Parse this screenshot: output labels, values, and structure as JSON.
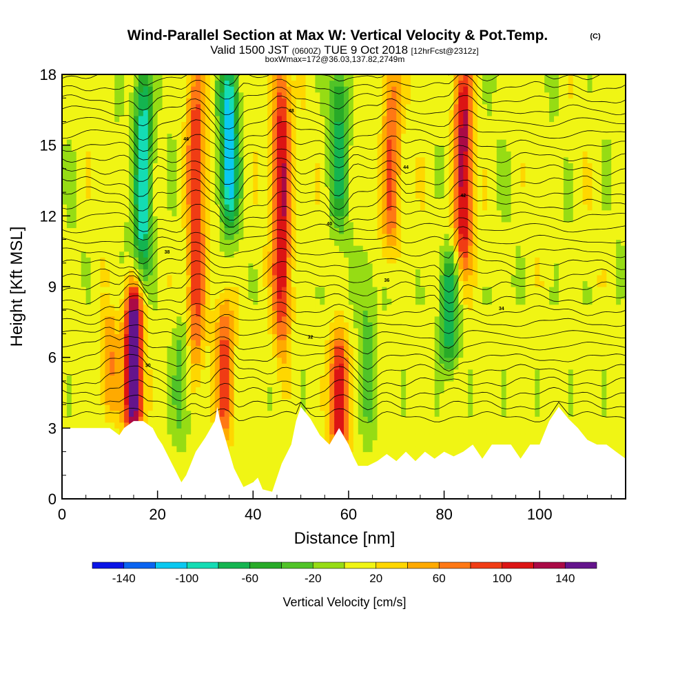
{
  "chart_data": {
    "type": "heatmap",
    "title": "Wind-Parallel Section at Max W: Vertical Velocity & Pot.Temp.",
    "title_suffix": "(C)",
    "subtitle_main": "Valid 1500 JST",
    "subtitle_utc": "(0600Z)",
    "subtitle_date": "TUE 9 Oct 2018",
    "subtitle_fcst": "[12hrFcst@2312z]",
    "subtitle2": "boxWmax=172@36.03,137.82,2749m",
    "xlabel": "Distance [nm]",
    "ylabel": "Height [Kft MSL]",
    "xlim": [
      0,
      118
    ],
    "ylim": [
      0,
      18
    ],
    "xticks": [
      "0",
      "20",
      "40",
      "60",
      "80",
      "100"
    ],
    "xtick_values": [
      0,
      20,
      40,
      60,
      80,
      100
    ],
    "yticks": [
      "0",
      "3",
      "6",
      "9",
      "12",
      "15",
      "18"
    ],
    "ytick_values": [
      0,
      3,
      6,
      9,
      12,
      15,
      18
    ],
    "colorbar": {
      "label": "Vertical Velocity [cm/s]",
      "ticks": [
        "-140",
        "-100",
        "-60",
        "-20",
        "20",
        "60",
        "100",
        "140"
      ],
      "tick_values": [
        -140,
        -100,
        -60,
        -20,
        20,
        60,
        100,
        140
      ],
      "boundaries": [
        -160,
        -140,
        -120,
        -100,
        -80,
        -60,
        -40,
        -20,
        0,
        20,
        40,
        60,
        80,
        100,
        120,
        140,
        160
      ],
      "colors": [
        "#0a14e6",
        "#0a64f0",
        "#0ac8f0",
        "#14dcb4",
        "#14b450",
        "#28aa28",
        "#50c328",
        "#96dc14",
        "#f0f514",
        "#ffd700",
        "#ffaa00",
        "#ff7814",
        "#f03c14",
        "#dc1414",
        "#aa0a46",
        "#64148c"
      ]
    },
    "updraft_columns": [
      {
        "x": 15,
        "peak_w": 172,
        "base": 3,
        "top": 8.5
      },
      {
        "x": 28,
        "peak_w": 90,
        "base": 6,
        "top": 18
      },
      {
        "x": 34,
        "peak_w": 80,
        "base": 3,
        "top": 8
      },
      {
        "x": 46,
        "peak_w": 120,
        "base": 7,
        "top": 18
      },
      {
        "x": 58,
        "peak_w": 110,
        "base": 2,
        "top": 6.5
      },
      {
        "x": 69,
        "peak_w": 80,
        "base": 11,
        "top": 18
      },
      {
        "x": 84,
        "peak_w": 120,
        "base": 10,
        "top": 18
      },
      {
        "x": 10,
        "peak_w": 55,
        "base": 4,
        "top": 7.5
      }
    ],
    "downdraft_columns": [
      {
        "x": 17,
        "peak_w": -110,
        "base": 10,
        "top": 18
      },
      {
        "x": 35,
        "peak_w": -120,
        "base": 12,
        "top": 18
      },
      {
        "x": 58,
        "peak_w": -70,
        "base": 12,
        "top": 18
      },
      {
        "x": 81,
        "peak_w": -80,
        "base": 6,
        "top": 10
      },
      {
        "x": 25,
        "peak_w": -40,
        "base": 3,
        "top": 7
      },
      {
        "x": 64,
        "peak_w": -35,
        "base": 3,
        "top": 10
      }
    ],
    "isentrope_labels": [
      "30",
      "32",
      "34",
      "36",
      "38",
      "40",
      "42",
      "44",
      "46",
      "48"
    ],
    "terrain": {
      "x": [
        0,
        10,
        12,
        13,
        15,
        17,
        19,
        20,
        21,
        22,
        23,
        24,
        25,
        26,
        27,
        28,
        30,
        32,
        32.5,
        33,
        34,
        35,
        36,
        37,
        38,
        40,
        41,
        42,
        44,
        46,
        48,
        49,
        50,
        52,
        54,
        56,
        58,
        60,
        61,
        62,
        64,
        66,
        68,
        70,
        72,
        74,
        76,
        78,
        80,
        82,
        84,
        86,
        88,
        90,
        92,
        94,
        96,
        98,
        100,
        102,
        104,
        106,
        108,
        110,
        112,
        114,
        116,
        118
      ],
      "y": [
        3,
        3,
        2.7,
        3,
        3.3,
        3.3,
        3,
        2.6,
        2.3,
        1.9,
        1.5,
        1.1,
        0.7,
        1.0,
        1.5,
        2.0,
        2.6,
        3.3,
        3.9,
        3.4,
        2.7,
        2.0,
        1.3,
        0.9,
        0.5,
        0.7,
        0.9,
        0.4,
        0.3,
        1.5,
        2.3,
        3.3,
        3.9,
        3.4,
        2.7,
        2.3,
        3.0,
        2.3,
        1.8,
        1.4,
        1.4,
        1.6,
        1.9,
        1.6,
        2.0,
        1.6,
        2.0,
        1.7,
        2.0,
        1.8,
        2.0,
        2.3,
        1.7,
        2.3,
        2.3,
        2.3,
        1.7,
        2.3,
        2.3,
        3.3,
        3.9,
        3.4,
        3.0,
        2.5,
        2.3,
        2.3,
        2.0,
        1.7
      ]
    }
  }
}
